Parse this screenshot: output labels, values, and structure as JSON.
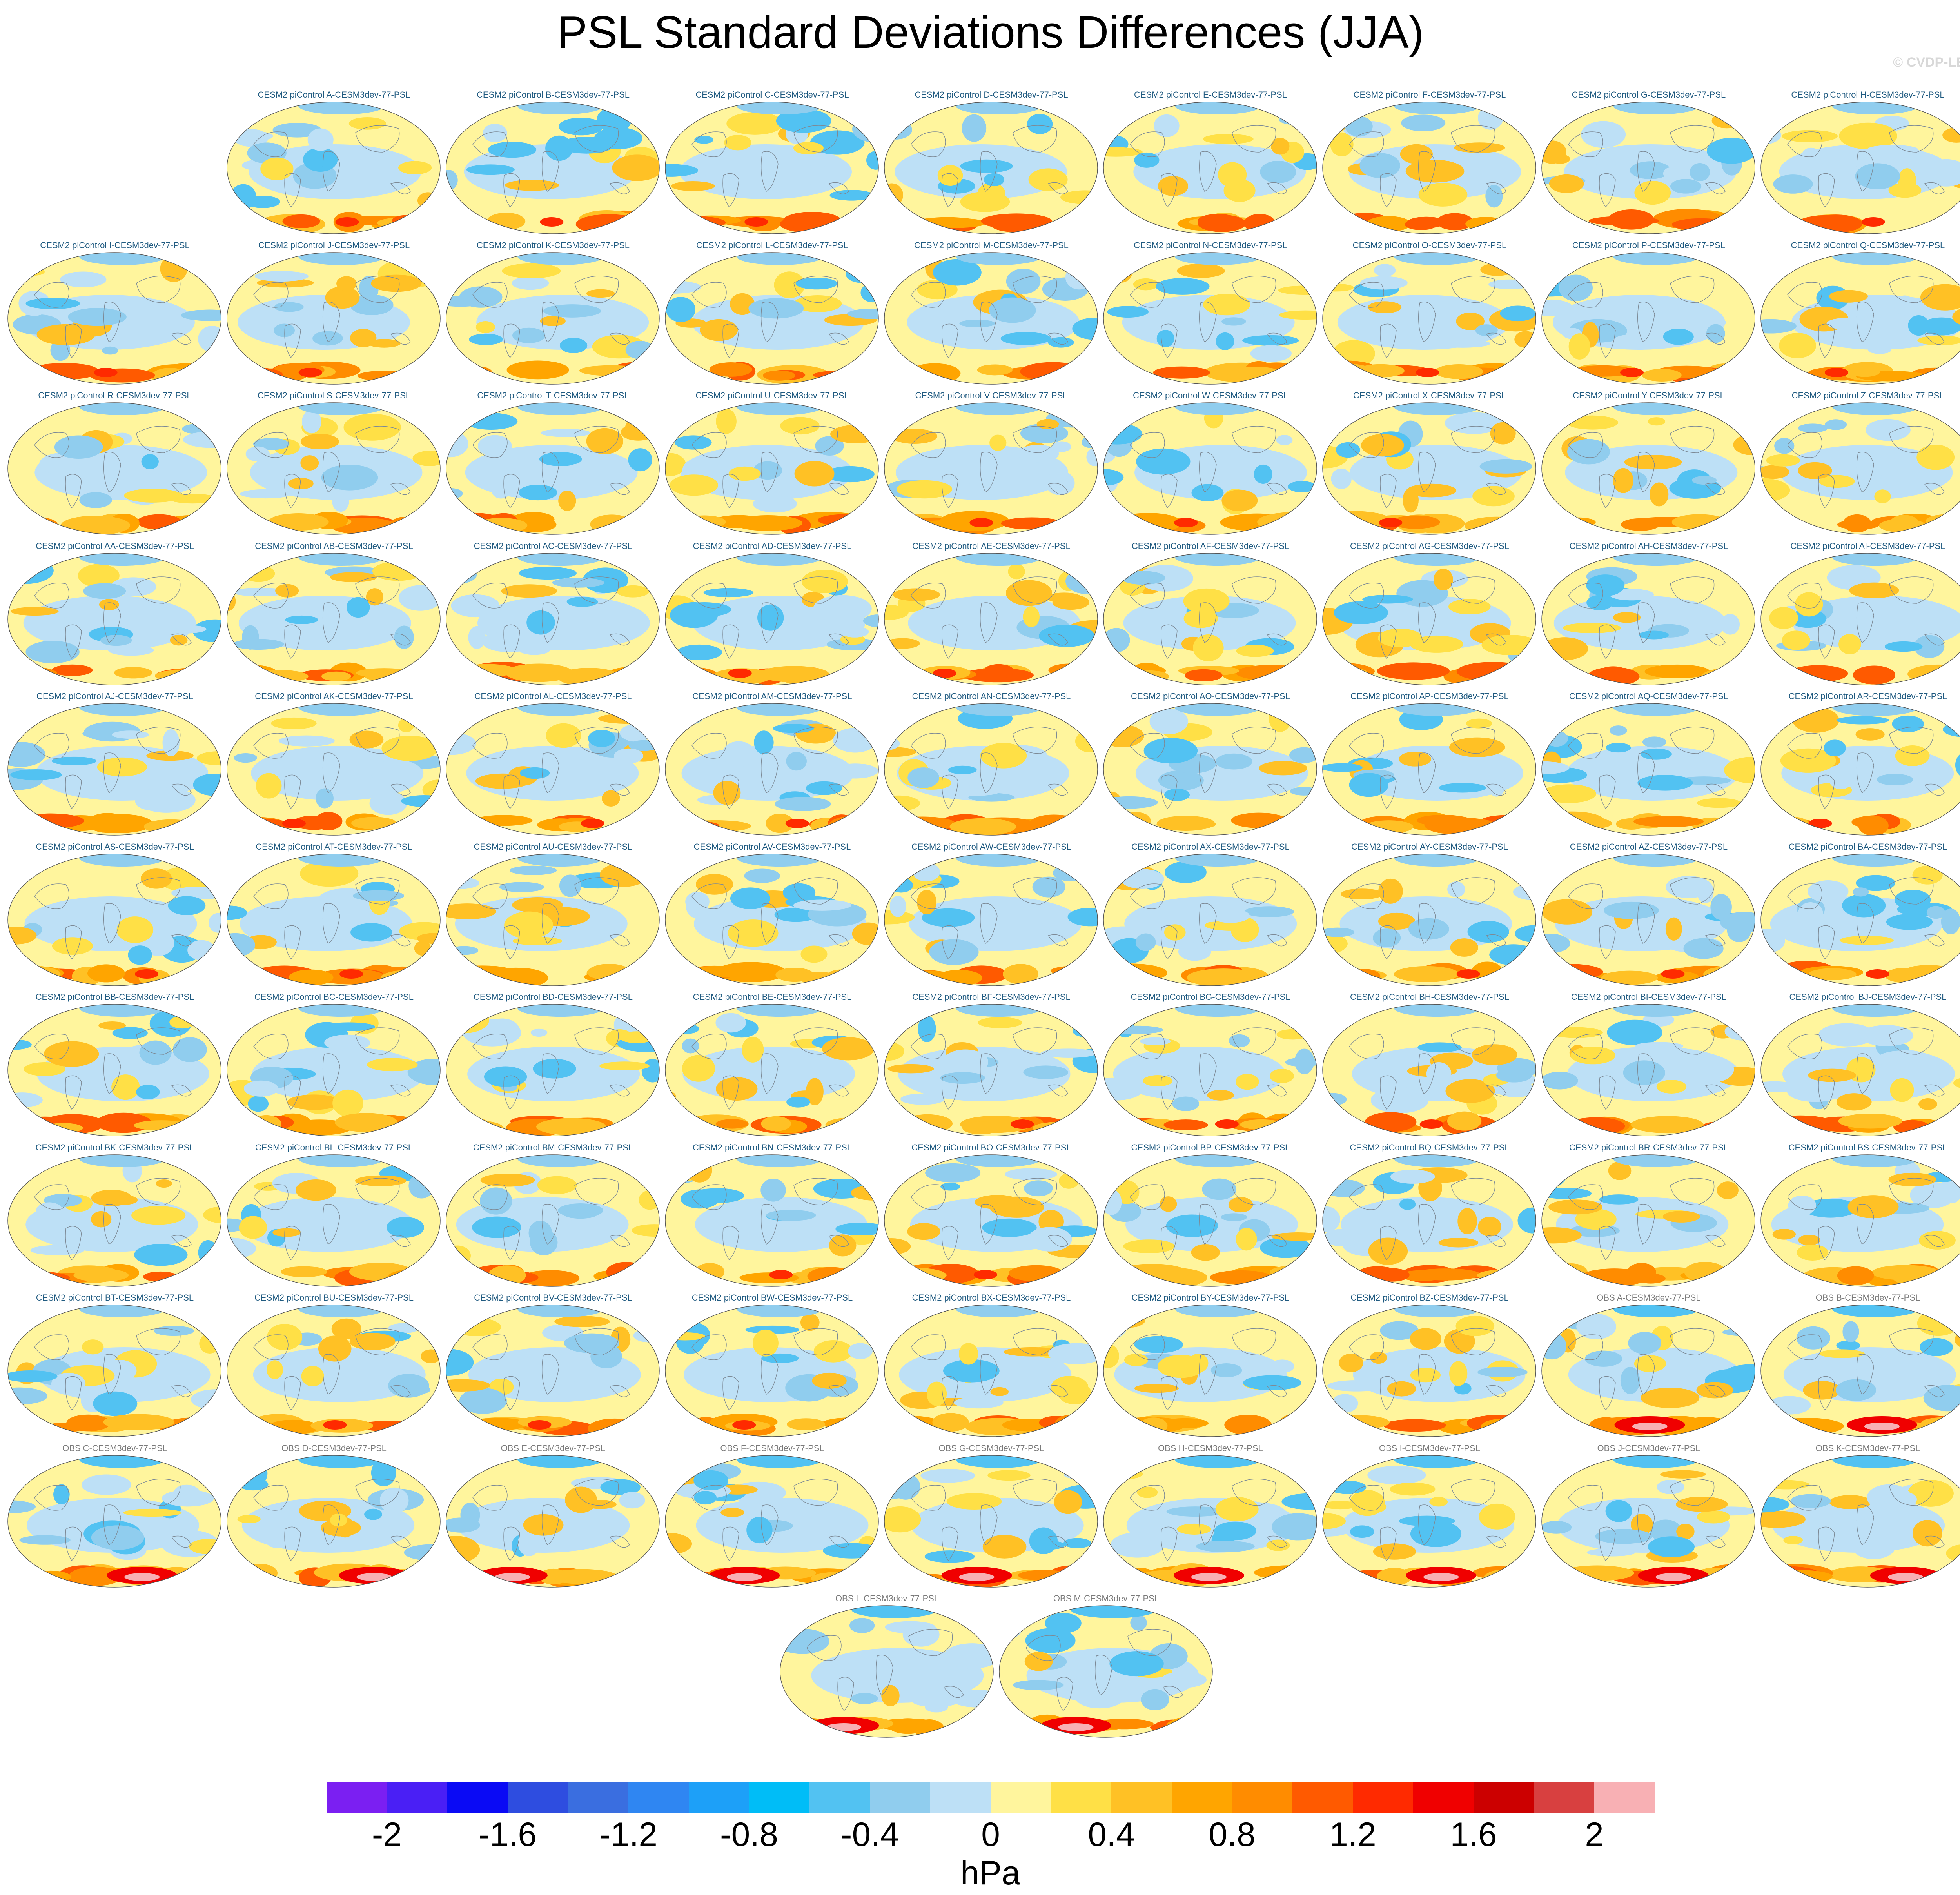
{
  "title": "PSL Standard Deviations Differences (JJA)",
  "copyright": "© CVDP-LE",
  "panels": [
    "CESM2 piControl A-CESM3dev-77-PSL",
    "CESM2 piControl B-CESM3dev-77-PSL",
    "CESM2 piControl C-CESM3dev-77-PSL",
    "CESM2 piControl D-CESM3dev-77-PSL",
    "CESM2 piControl E-CESM3dev-77-PSL",
    "CESM2 piControl F-CESM3dev-77-PSL",
    "CESM2 piControl G-CESM3dev-77-PSL",
    "CESM2 piControl H-CESM3dev-77-PSL",
    "CESM2 piControl I-CESM3dev-77-PSL",
    "CESM2 piControl J-CESM3dev-77-PSL",
    "CESM2 piControl K-CESM3dev-77-PSL",
    "CESM2 piControl L-CESM3dev-77-PSL",
    "CESM2 piControl M-CESM3dev-77-PSL",
    "CESM2 piControl N-CESM3dev-77-PSL",
    "CESM2 piControl O-CESM3dev-77-PSL",
    "CESM2 piControl P-CESM3dev-77-PSL",
    "CESM2 piControl Q-CESM3dev-77-PSL",
    "CESM2 piControl R-CESM3dev-77-PSL",
    "CESM2 piControl S-CESM3dev-77-PSL",
    "CESM2 piControl T-CESM3dev-77-PSL",
    "CESM2 piControl U-CESM3dev-77-PSL",
    "CESM2 piControl V-CESM3dev-77-PSL",
    "CESM2 piControl W-CESM3dev-77-PSL",
    "CESM2 piControl X-CESM3dev-77-PSL",
    "CESM2 piControl Y-CESM3dev-77-PSL",
    "CESM2 piControl Z-CESM3dev-77-PSL",
    "CESM2 piControl AA-CESM3dev-77-PSL",
    "CESM2 piControl AB-CESM3dev-77-PSL",
    "CESM2 piControl AC-CESM3dev-77-PSL",
    "CESM2 piControl AD-CESM3dev-77-PSL",
    "CESM2 piControl AE-CESM3dev-77-PSL",
    "CESM2 piControl AF-CESM3dev-77-PSL",
    "CESM2 piControl AG-CESM3dev-77-PSL",
    "CESM2 piControl AH-CESM3dev-77-PSL",
    "CESM2 piControl AI-CESM3dev-77-PSL",
    "CESM2 piControl AJ-CESM3dev-77-PSL",
    "CESM2 piControl AK-CESM3dev-77-PSL",
    "CESM2 piControl AL-CESM3dev-77-PSL",
    "CESM2 piControl AM-CESM3dev-77-PSL",
    "CESM2 piControl AN-CESM3dev-77-PSL",
    "CESM2 piControl AO-CESM3dev-77-PSL",
    "CESM2 piControl AP-CESM3dev-77-PSL",
    "CESM2 piControl AQ-CESM3dev-77-PSL",
    "CESM2 piControl AR-CESM3dev-77-PSL",
    "CESM2 piControl AS-CESM3dev-77-PSL",
    "CESM2 piControl AT-CESM3dev-77-PSL",
    "CESM2 piControl AU-CESM3dev-77-PSL",
    "CESM2 piControl AV-CESM3dev-77-PSL",
    "CESM2 piControl AW-CESM3dev-77-PSL",
    "CESM2 piControl AX-CESM3dev-77-PSL",
    "CESM2 piControl AY-CESM3dev-77-PSL",
    "CESM2 piControl AZ-CESM3dev-77-PSL",
    "CESM2 piControl BA-CESM3dev-77-PSL",
    "CESM2 piControl BB-CESM3dev-77-PSL",
    "CESM2 piControl BC-CESM3dev-77-PSL",
    "CESM2 piControl BD-CESM3dev-77-PSL",
    "CESM2 piControl BE-CESM3dev-77-PSL",
    "CESM2 piControl BF-CESM3dev-77-PSL",
    "CESM2 piControl BG-CESM3dev-77-PSL",
    "CESM2 piControl BH-CESM3dev-77-PSL",
    "CESM2 piControl BI-CESM3dev-77-PSL",
    "CESM2 piControl BJ-CESM3dev-77-PSL",
    "CESM2 piControl BK-CESM3dev-77-PSL",
    "CESM2 piControl BL-CESM3dev-77-PSL",
    "CESM2 piControl BM-CESM3dev-77-PSL",
    "CESM2 piControl BN-CESM3dev-77-PSL",
    "CESM2 piControl BO-CESM3dev-77-PSL",
    "CESM2 piControl BP-CESM3dev-77-PSL",
    "CESM2 piControl BQ-CESM3dev-77-PSL",
    "CESM2 piControl BR-CESM3dev-77-PSL",
    "CESM2 piControl BS-CESM3dev-77-PSL",
    "CESM2 piControl BT-CESM3dev-77-PSL",
    "CESM2 piControl BU-CESM3dev-77-PSL",
    "CESM2 piControl BV-CESM3dev-77-PSL",
    "CESM2 piControl BW-CESM3dev-77-PSL",
    "CESM2 piControl BX-CESM3dev-77-PSL",
    "CESM2 piControl BY-CESM3dev-77-PSL",
    "CESM2 piControl BZ-CESM3dev-77-PSL",
    "OBS A-CESM3dev-77-PSL",
    "OBS B-CESM3dev-77-PSL",
    "OBS C-CESM3dev-77-PSL",
    "OBS D-CESM3dev-77-PSL",
    "OBS E-CESM3dev-77-PSL",
    "OBS F-CESM3dev-77-PSL",
    "OBS G-CESM3dev-77-PSL",
    "OBS H-CESM3dev-77-PSL",
    "OBS I-CESM3dev-77-PSL",
    "OBS J-CESM3dev-77-PSL",
    "OBS K-CESM3dev-77-PSL",
    "OBS L-CESM3dev-77-PSL",
    "OBS M-CESM3dev-77-PSL"
  ],
  "colorbar": {
    "colors": [
      "#7b1ff2",
      "#4a1ff5",
      "#0a0af5",
      "#2e4de0",
      "#3a6ee0",
      "#2f86f2",
      "#1da0f8",
      "#00bdf7",
      "#52c2f2",
      "#90cdee",
      "#bde0f6",
      "#fff59d",
      "#ffe046",
      "#ffc125",
      "#ffa500",
      "#ff8c00",
      "#ff5a00",
      "#ff2a00",
      "#f00000",
      "#cc0000",
      "#d84040",
      "#f8b0b4"
    ],
    "tick_labels": [
      "-2",
      "-1.6",
      "-1.2",
      "-0.8",
      "-0.4",
      "0",
      "0.4",
      "0.8",
      "1.2",
      "1.6",
      "2"
    ],
    "units": "hPa"
  }
}
